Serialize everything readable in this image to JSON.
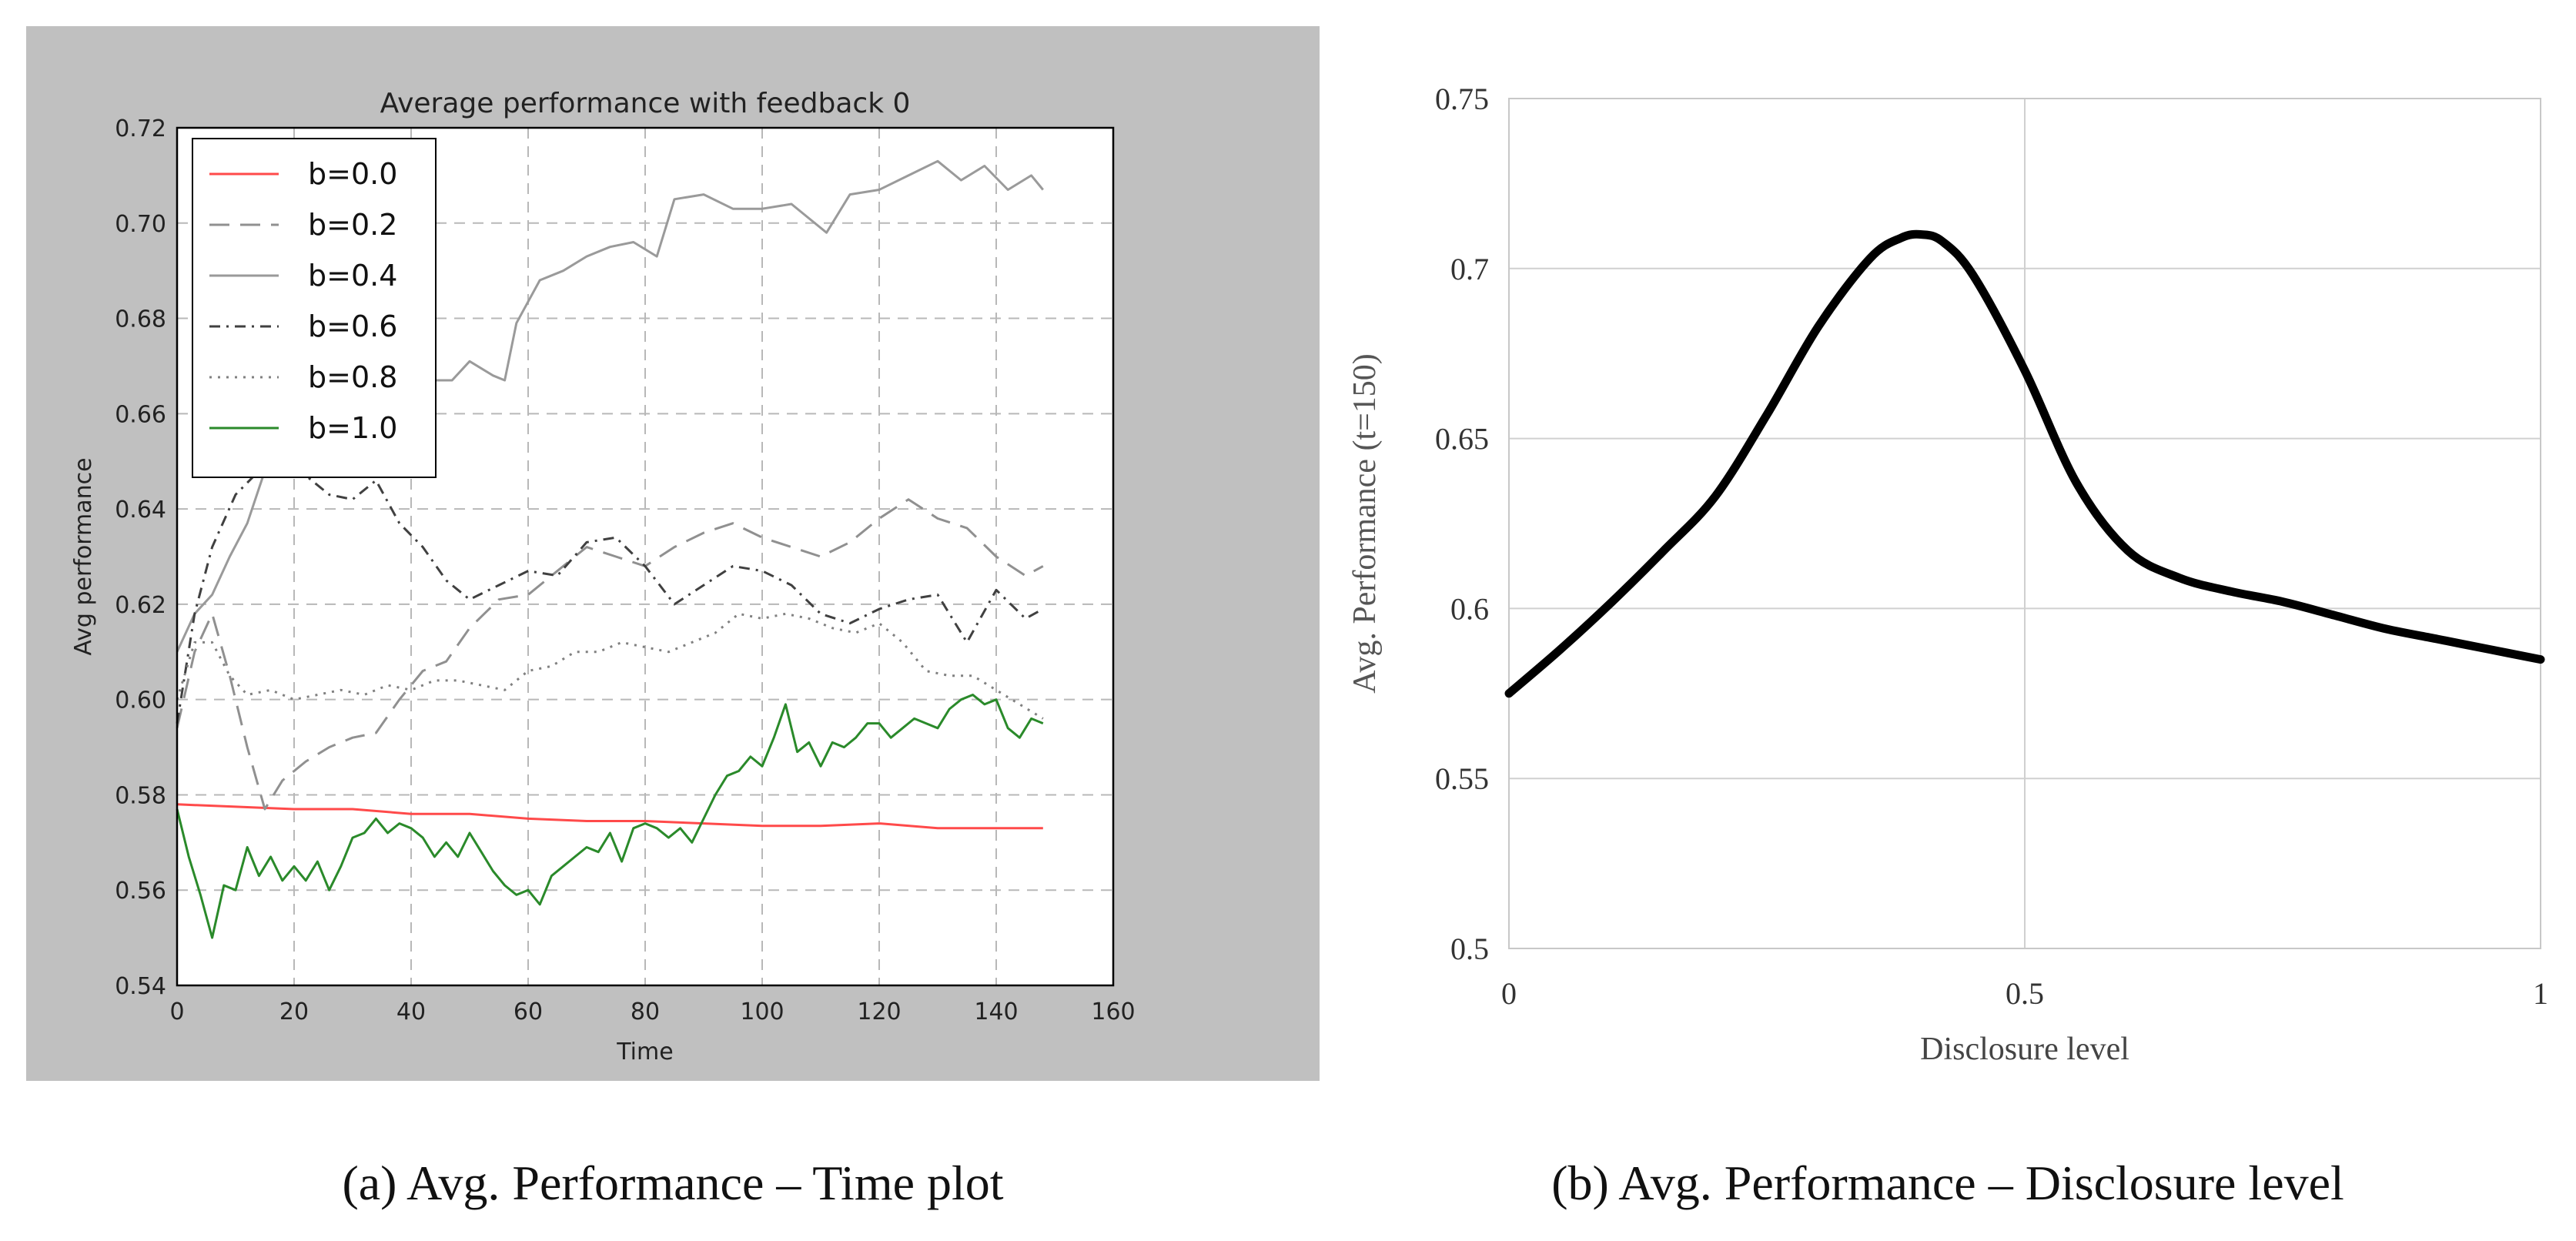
{
  "captions": {
    "a": "(a) Avg. Performance – Time plot",
    "b": "(b) Avg. Performance – Disclosure level"
  },
  "chart_data": [
    {
      "type": "line",
      "title": "Average performance with feedback 0",
      "xlabel": "Time",
      "ylabel": "Avg performance",
      "xlim": [
        0,
        160
      ],
      "ylim": [
        0.54,
        0.72
      ],
      "xticks": [
        "0",
        "20",
        "40",
        "60",
        "80",
        "100",
        "120",
        "140",
        "160"
      ],
      "yticks": [
        "0.54",
        "0.56",
        "0.58",
        "0.60",
        "0.62",
        "0.64",
        "0.66",
        "0.68",
        "0.70",
        "0.72"
      ],
      "grid": true,
      "legend": "top-left",
      "background": "#c0c0c0",
      "series": [
        {
          "name": "b=0.0",
          "color": "#ff4a4a",
          "dash": "solid",
          "points": [
            [
              0,
              0.578
            ],
            [
              10,
              0.5775
            ],
            [
              20,
              0.577
            ],
            [
              30,
              0.577
            ],
            [
              40,
              0.576
            ],
            [
              50,
              0.576
            ],
            [
              60,
              0.575
            ],
            [
              70,
              0.5745
            ],
            [
              80,
              0.5745
            ],
            [
              90,
              0.574
            ],
            [
              100,
              0.5735
            ],
            [
              110,
              0.5735
            ],
            [
              120,
              0.574
            ],
            [
              130,
              0.573
            ],
            [
              140,
              0.573
            ],
            [
              148,
              0.573
            ]
          ]
        },
        {
          "name": "b=0.2",
          "color": "#909090",
          "dash": "dashed",
          "points": [
            [
              0,
              0.594
            ],
            [
              3,
              0.61
            ],
            [
              6,
              0.618
            ],
            [
              9,
              0.605
            ],
            [
              12,
              0.59
            ],
            [
              15,
              0.577
            ],
            [
              18,
              0.583
            ],
            [
              22,
              0.587
            ],
            [
              26,
              0.59
            ],
            [
              30,
              0.592
            ],
            [
              34,
              0.593
            ],
            [
              38,
              0.6
            ],
            [
              42,
              0.606
            ],
            [
              46,
              0.608
            ],
            [
              50,
              0.615
            ],
            [
              55,
              0.621
            ],
            [
              60,
              0.622
            ],
            [
              65,
              0.627
            ],
            [
              70,
              0.632
            ],
            [
              75,
              0.63
            ],
            [
              80,
              0.628
            ],
            [
              85,
              0.632
            ],
            [
              90,
              0.635
            ],
            [
              95,
              0.637
            ],
            [
              100,
              0.634
            ],
            [
              105,
              0.632
            ],
            [
              110,
              0.63
            ],
            [
              115,
              0.633
            ],
            [
              120,
              0.638
            ],
            [
              125,
              0.642
            ],
            [
              130,
              0.638
            ],
            [
              135,
              0.636
            ],
            [
              140,
              0.63
            ],
            [
              145,
              0.626
            ],
            [
              148,
              0.628
            ]
          ]
        },
        {
          "name": "b=0.4",
          "color": "#9a9a9a",
          "dash": "solid",
          "points": [
            [
              0,
              0.61
            ],
            [
              3,
              0.618
            ],
            [
              6,
              0.622
            ],
            [
              9,
              0.63
            ],
            [
              12,
              0.637
            ],
            [
              15,
              0.648
            ],
            [
              18,
              0.65
            ],
            [
              22,
              0.66
            ],
            [
              26,
              0.668
            ],
            [
              30,
              0.672
            ],
            [
              35,
              0.684
            ],
            [
              38,
              0.681
            ],
            [
              40,
              0.672
            ],
            [
              43,
              0.667
            ],
            [
              47,
              0.667
            ],
            [
              50,
              0.671
            ],
            [
              54,
              0.668
            ],
            [
              56,
              0.667
            ],
            [
              58,
              0.679
            ],
            [
              62,
              0.688
            ],
            [
              66,
              0.69
            ],
            [
              70,
              0.693
            ],
            [
              74,
              0.695
            ],
            [
              78,
              0.696
            ],
            [
              82,
              0.693
            ],
            [
              85,
              0.705
            ],
            [
              90,
              0.706
            ],
            [
              95,
              0.703
            ],
            [
              100,
              0.703
            ],
            [
              105,
              0.704
            ],
            [
              108,
              0.701
            ],
            [
              111,
              0.698
            ],
            [
              115,
              0.706
            ],
            [
              120,
              0.707
            ],
            [
              125,
              0.71
            ],
            [
              130,
              0.713
            ],
            [
              134,
              0.709
            ],
            [
              138,
              0.712
            ],
            [
              142,
              0.707
            ],
            [
              146,
              0.71
            ],
            [
              148,
              0.707
            ]
          ]
        },
        {
          "name": "b=0.6",
          "color": "#404040",
          "dash": "dashdot",
          "points": [
            [
              0,
              0.595
            ],
            [
              3,
              0.618
            ],
            [
              6,
              0.632
            ],
            [
              10,
              0.643
            ],
            [
              14,
              0.648
            ],
            [
              18,
              0.648
            ],
            [
              22,
              0.647
            ],
            [
              26,
              0.643
            ],
            [
              30,
              0.642
            ],
            [
              34,
              0.646
            ],
            [
              38,
              0.637
            ],
            [
              42,
              0.632
            ],
            [
              46,
              0.625
            ],
            [
              50,
              0.621
            ],
            [
              55,
              0.624
            ],
            [
              60,
              0.627
            ],
            [
              65,
              0.626
            ],
            [
              70,
              0.633
            ],
            [
              75,
              0.634
            ],
            [
              80,
              0.628
            ],
            [
              85,
              0.62
            ],
            [
              90,
              0.624
            ],
            [
              95,
              0.628
            ],
            [
              100,
              0.627
            ],
            [
              105,
              0.624
            ],
            [
              110,
              0.618
            ],
            [
              115,
              0.616
            ],
            [
              120,
              0.619
            ],
            [
              125,
              0.621
            ],
            [
              130,
              0.622
            ],
            [
              135,
              0.612
            ],
            [
              140,
              0.623
            ],
            [
              145,
              0.617
            ],
            [
              148,
              0.619
            ]
          ]
        },
        {
          "name": "b=0.8",
          "color": "#808080",
          "dash": "dotted",
          "points": [
            [
              0,
              0.6
            ],
            [
              3,
              0.612
            ],
            [
              6,
              0.612
            ],
            [
              9,
              0.605
            ],
            [
              12,
              0.601
            ],
            [
              16,
              0.602
            ],
            [
              20,
              0.6
            ],
            [
              24,
              0.601
            ],
            [
              28,
              0.602
            ],
            [
              32,
              0.601
            ],
            [
              36,
              0.603
            ],
            [
              40,
              0.602
            ],
            [
              44,
              0.604
            ],
            [
              48,
              0.604
            ],
            [
              52,
              0.603
            ],
            [
              56,
              0.602
            ],
            [
              60,
              0.606
            ],
            [
              64,
              0.607
            ],
            [
              68,
              0.61
            ],
            [
              72,
              0.61
            ],
            [
              76,
              0.612
            ],
            [
              80,
              0.611
            ],
            [
              84,
              0.61
            ],
            [
              88,
              0.612
            ],
            [
              92,
              0.614
            ],
            [
              96,
              0.618
            ],
            [
              100,
              0.617
            ],
            [
              104,
              0.618
            ],
            [
              108,
              0.617
            ],
            [
              112,
              0.615
            ],
            [
              116,
              0.614
            ],
            [
              120,
              0.616
            ],
            [
              124,
              0.612
            ],
            [
              128,
              0.606
            ],
            [
              132,
              0.605
            ],
            [
              136,
              0.605
            ],
            [
              140,
              0.602
            ],
            [
              144,
              0.599
            ],
            [
              148,
              0.596
            ]
          ]
        },
        {
          "name": "b=1.0",
          "color": "#2a8a2a",
          "dash": "solid",
          "points": [
            [
              0,
              0.577
            ],
            [
              2,
              0.567
            ],
            [
              4,
              0.559
            ],
            [
              6,
              0.55
            ],
            [
              8,
              0.561
            ],
            [
              10,
              0.56
            ],
            [
              12,
              0.569
            ],
            [
              14,
              0.563
            ],
            [
              16,
              0.567
            ],
            [
              18,
              0.562
            ],
            [
              20,
              0.565
            ],
            [
              22,
              0.562
            ],
            [
              24,
              0.566
            ],
            [
              26,
              0.56
            ],
            [
              28,
              0.565
            ],
            [
              30,
              0.571
            ],
            [
              32,
              0.572
            ],
            [
              34,
              0.575
            ],
            [
              36,
              0.572
            ],
            [
              38,
              0.574
            ],
            [
              40,
              0.573
            ],
            [
              42,
              0.571
            ],
            [
              44,
              0.567
            ],
            [
              46,
              0.57
            ],
            [
              48,
              0.567
            ],
            [
              50,
              0.572
            ],
            [
              52,
              0.568
            ],
            [
              54,
              0.564
            ],
            [
              56,
              0.561
            ],
            [
              58,
              0.559
            ],
            [
              60,
              0.56
            ],
            [
              62,
              0.557
            ],
            [
              64,
              0.563
            ],
            [
              66,
              0.565
            ],
            [
              68,
              0.567
            ],
            [
              70,
              0.569
            ],
            [
              72,
              0.568
            ],
            [
              74,
              0.572
            ],
            [
              76,
              0.566
            ],
            [
              78,
              0.573
            ],
            [
              80,
              0.574
            ],
            [
              82,
              0.573
            ],
            [
              84,
              0.571
            ],
            [
              86,
              0.573
            ],
            [
              88,
              0.57
            ],
            [
              90,
              0.575
            ],
            [
              92,
              0.58
            ],
            [
              94,
              0.584
            ],
            [
              96,
              0.585
            ],
            [
              98,
              0.588
            ],
            [
              100,
              0.586
            ],
            [
              102,
              0.592
            ],
            [
              104,
              0.599
            ],
            [
              106,
              0.589
            ],
            [
              108,
              0.591
            ],
            [
              110,
              0.586
            ],
            [
              112,
              0.591
            ],
            [
              114,
              0.59
            ],
            [
              116,
              0.592
            ],
            [
              118,
              0.595
            ],
            [
              120,
              0.595
            ],
            [
              122,
              0.592
            ],
            [
              124,
              0.594
            ],
            [
              126,
              0.596
            ],
            [
              128,
              0.595
            ],
            [
              130,
              0.594
            ],
            [
              132,
              0.598
            ],
            [
              134,
              0.6
            ],
            [
              136,
              0.601
            ],
            [
              138,
              0.599
            ],
            [
              140,
              0.6
            ],
            [
              142,
              0.594
            ],
            [
              144,
              0.592
            ],
            [
              146,
              0.596
            ],
            [
              148,
              0.595
            ]
          ]
        }
      ]
    },
    {
      "type": "line",
      "title": "",
      "xlabel": "Disclosure level",
      "ylabel": "Avg. Performance (t=150)",
      "xlim": [
        0,
        1
      ],
      "ylim": [
        0.5,
        0.75
      ],
      "xticks": [
        "0",
        "0.5",
        "1"
      ],
      "yticks": [
        "0.5",
        "0.55",
        "0.6",
        "0.65",
        "0.7",
        "0.75"
      ],
      "grid": true,
      "legend": "none",
      "series": [
        {
          "color": "#000000",
          "points": [
            [
              0,
              0.575
            ],
            [
              0.05,
              0.588
            ],
            [
              0.1,
              0.602
            ],
            [
              0.15,
              0.617
            ],
            [
              0.2,
              0.633
            ],
            [
              0.25,
              0.657
            ],
            [
              0.3,
              0.683
            ],
            [
              0.35,
              0.703
            ],
            [
              0.38,
              0.709
            ],
            [
              0.4,
              0.71
            ],
            [
              0.42,
              0.708
            ],
            [
              0.45,
              0.698
            ],
            [
              0.5,
              0.67
            ],
            [
              0.55,
              0.637
            ],
            [
              0.6,
              0.617
            ],
            [
              0.65,
              0.609
            ],
            [
              0.7,
              0.605
            ],
            [
              0.75,
              0.602
            ],
            [
              0.8,
              0.598
            ],
            [
              0.85,
              0.594
            ],
            [
              0.9,
              0.591
            ],
            [
              0.95,
              0.588
            ],
            [
              1.0,
              0.585
            ]
          ]
        }
      ]
    }
  ]
}
